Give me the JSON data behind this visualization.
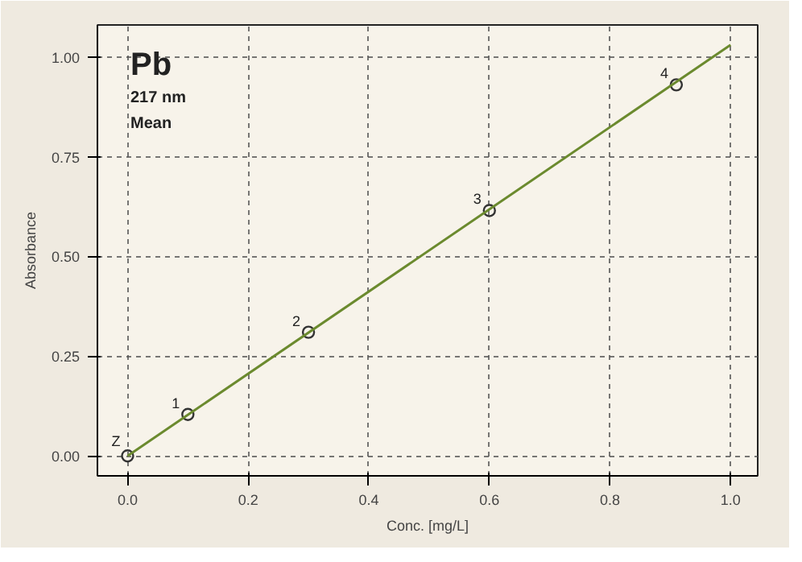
{
  "chart_data": {
    "type": "scatter",
    "title": "Pb",
    "subtitle": "217 nm",
    "xlabel": "Conc. [mg/L]",
    "ylabel": "Absorbance",
    "annotations": [
      "Mean",
      {
        "text": "Z",
        "x": 0.0,
        "y": 0.0
      },
      {
        "text": "1",
        "x": 0.1,
        "y": 0.104
      },
      {
        "text": "2",
        "x": 0.3,
        "y": 0.31
      },
      {
        "text": "3",
        "x": 0.6,
        "y": 0.615
      },
      {
        "text": "4",
        "x": 0.91,
        "y": 0.93
      }
    ],
    "x": [
      0.0,
      0.1,
      0.3,
      0.6,
      0.91
    ],
    "series": [
      {
        "color": "#333333",
        "values": [
          0.0,
          0.104,
          0.31,
          0.615,
          0.93
        ],
        "marker": "circle"
      },
      {
        "type": "line",
        "color": "#6b8a2e",
        "x": [
          0.0,
          1.0
        ],
        "values": [
          0.0,
          1.03
        ],
        "marker": "none",
        "line_style": "solid"
      }
    ],
    "xlim": [
      -0.05,
      1.045
    ],
    "ylim": [
      -0.05,
      1.08
    ],
    "xticks": [
      {
        "value": 0,
        "label": "0.0"
      },
      0.2,
      0.4,
      0.6,
      0.8,
      {
        "value": 1,
        "label": "1.0"
      }
    ],
    "yticks": [
      {
        "value": 0,
        "label": "0.00"
      },
      0.25,
      {
        "value": 0.5,
        "label": "0.50"
      },
      0.75,
      {
        "value": 1,
        "label": "1.00"
      }
    ],
    "grid": true
  }
}
